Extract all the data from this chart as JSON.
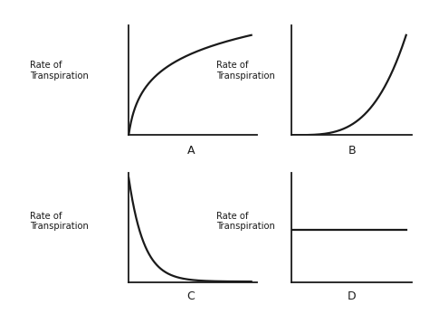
{
  "background_color": "#ffffff",
  "fig_width": 4.74,
  "fig_height": 3.47,
  "dpi": 100,
  "ylabel_text": "Rate of\nTranspiration",
  "line_color": "#1a1a1a",
  "line_width": 1.6,
  "axis_color": "#1a1a1a",
  "sublabel_fontsize": 9,
  "ylabel_fontsize": 7.2,
  "spine_lw": 1.3,
  "panels": [
    "A",
    "B",
    "C",
    "D"
  ]
}
